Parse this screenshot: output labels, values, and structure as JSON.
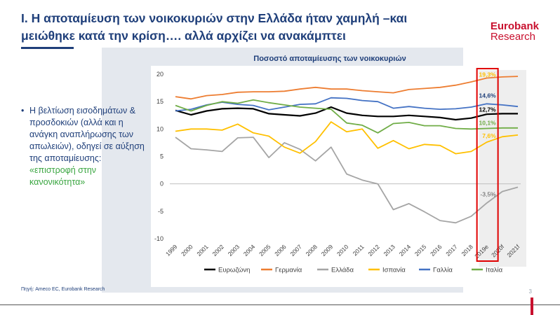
{
  "slide": {
    "title": "I. Η αποταμίευση των νοικοκυριών στην Ελλάδα ήταν χαμηλή –και μειώθηκε κατά την κρίση…. αλλά αρχίζει να ανακάμπτει",
    "logo_line1": "Eurobank",
    "logo_line2": "Research",
    "bullet_text": "Η βελτίωση εισοδημάτων & προσδοκιών (αλλά και η ανάγκη αναπλήρωσης των απωλειών), οδηγεί σε αύξηση της αποταμίευσης:",
    "bullet_highlight": "«επιστροφή στην κανονικότητα»",
    "source": "Πηγή: Ameco EC, Eurobank Research",
    "page_number": "3"
  },
  "chart_data": {
    "type": "line",
    "title": "Ποσοστό αποταμίευσης των νοικοκυριών",
    "xlabel": "",
    "ylabel": "",
    "categories": [
      "1999",
      "2000",
      "2001",
      "2002",
      "2003",
      "2004",
      "2005",
      "2006",
      "2007",
      "2008",
      "2009",
      "2010",
      "2011",
      "2012",
      "2013",
      "2014",
      "2015",
      "2016",
      "2017",
      "2018",
      "2019e",
      "2020f",
      "2021f"
    ],
    "ylim": [
      -10,
      20
    ],
    "yticks": [
      -10,
      -5,
      0,
      5,
      10,
      15,
      20
    ],
    "grid": false,
    "legend_position": "bottom",
    "highlight_category": "2019e",
    "forecast_start_category": "2019e",
    "series": [
      {
        "name": "Ευρωζώνη",
        "color": "#000000",
        "values": [
          13.4,
          12.6,
          13.3,
          13.7,
          13.8,
          13.7,
          12.8,
          12.6,
          12.4,
          12.9,
          14.0,
          12.9,
          12.5,
          12.3,
          12.3,
          12.5,
          12.3,
          12.1,
          11.7,
          12.0,
          12.7,
          12.8,
          12.8
        ]
      },
      {
        "name": "Γερμανία",
        "color": "#ed7d31",
        "values": [
          15.9,
          15.5,
          16.1,
          16.3,
          16.7,
          16.8,
          16.8,
          16.9,
          17.3,
          17.6,
          17.3,
          17.3,
          17.0,
          16.8,
          16.6,
          17.2,
          17.4,
          17.6,
          18.0,
          18.6,
          19.3,
          19.5,
          19.6
        ]
      },
      {
        "name": "Ελλάδα",
        "color": "#a5a5a5",
        "values": [
          8.5,
          6.4,
          6.2,
          5.9,
          8.4,
          8.5,
          4.8,
          7.5,
          6.3,
          4.2,
          6.7,
          1.8,
          0.7,
          0.0,
          -4.7,
          -3.6,
          -5.1,
          -6.7,
          -7.1,
          -5.9,
          -3.5,
          -1.4,
          -0.6
        ]
      },
      {
        "name": "Ισπανία",
        "color": "#ffc000",
        "values": [
          9.6,
          10.0,
          10.0,
          9.8,
          10.9,
          9.3,
          8.7,
          6.7,
          5.6,
          7.7,
          11.3,
          9.5,
          10.0,
          6.5,
          7.9,
          6.4,
          7.2,
          7.0,
          5.5,
          5.9,
          7.6,
          8.6,
          8.9
        ]
      },
      {
        "name": "Γαλλία",
        "color": "#4472c4",
        "values": [
          13.3,
          13.6,
          14.4,
          14.9,
          14.5,
          14.3,
          13.5,
          14.0,
          14.5,
          14.6,
          15.7,
          15.6,
          15.2,
          15.0,
          13.8,
          14.1,
          13.8,
          13.6,
          13.7,
          14.0,
          14.6,
          14.4,
          14.1
        ]
      },
      {
        "name": "Ιταλία",
        "color": "#70ad47",
        "values": [
          14.3,
          13.3,
          14.3,
          15.0,
          14.7,
          15.3,
          14.8,
          14.4,
          14.0,
          13.8,
          13.6,
          11.1,
          10.7,
          9.3,
          11.0,
          11.2,
          10.6,
          10.6,
          10.1,
          10.0,
          10.1,
          10.2,
          10.2
        ]
      }
    ],
    "annotations": [
      {
        "text": "19,3%",
        "color": "#ffc000",
        "bold": true,
        "category": "2019e",
        "y": 19.3
      },
      {
        "text": "14,6%",
        "color": "#1f3f7a",
        "bold": true,
        "category": "2019e",
        "y": 15.5
      },
      {
        "text": "12,7%",
        "color": "#000000",
        "bold": true,
        "category": "2019e",
        "y": 12.9
      },
      {
        "text": "10,1%",
        "color": "#70ad47",
        "bold": true,
        "category": "2019e",
        "y": 10.5
      },
      {
        "text": "7,6%",
        "color": "#ffc000",
        "bold": true,
        "category": "2019e",
        "y": 8.1
      },
      {
        "text": "-3,5%",
        "color": "#555555",
        "bold": false,
        "category": "2019e",
        "y": -2.5
      }
    ]
  }
}
